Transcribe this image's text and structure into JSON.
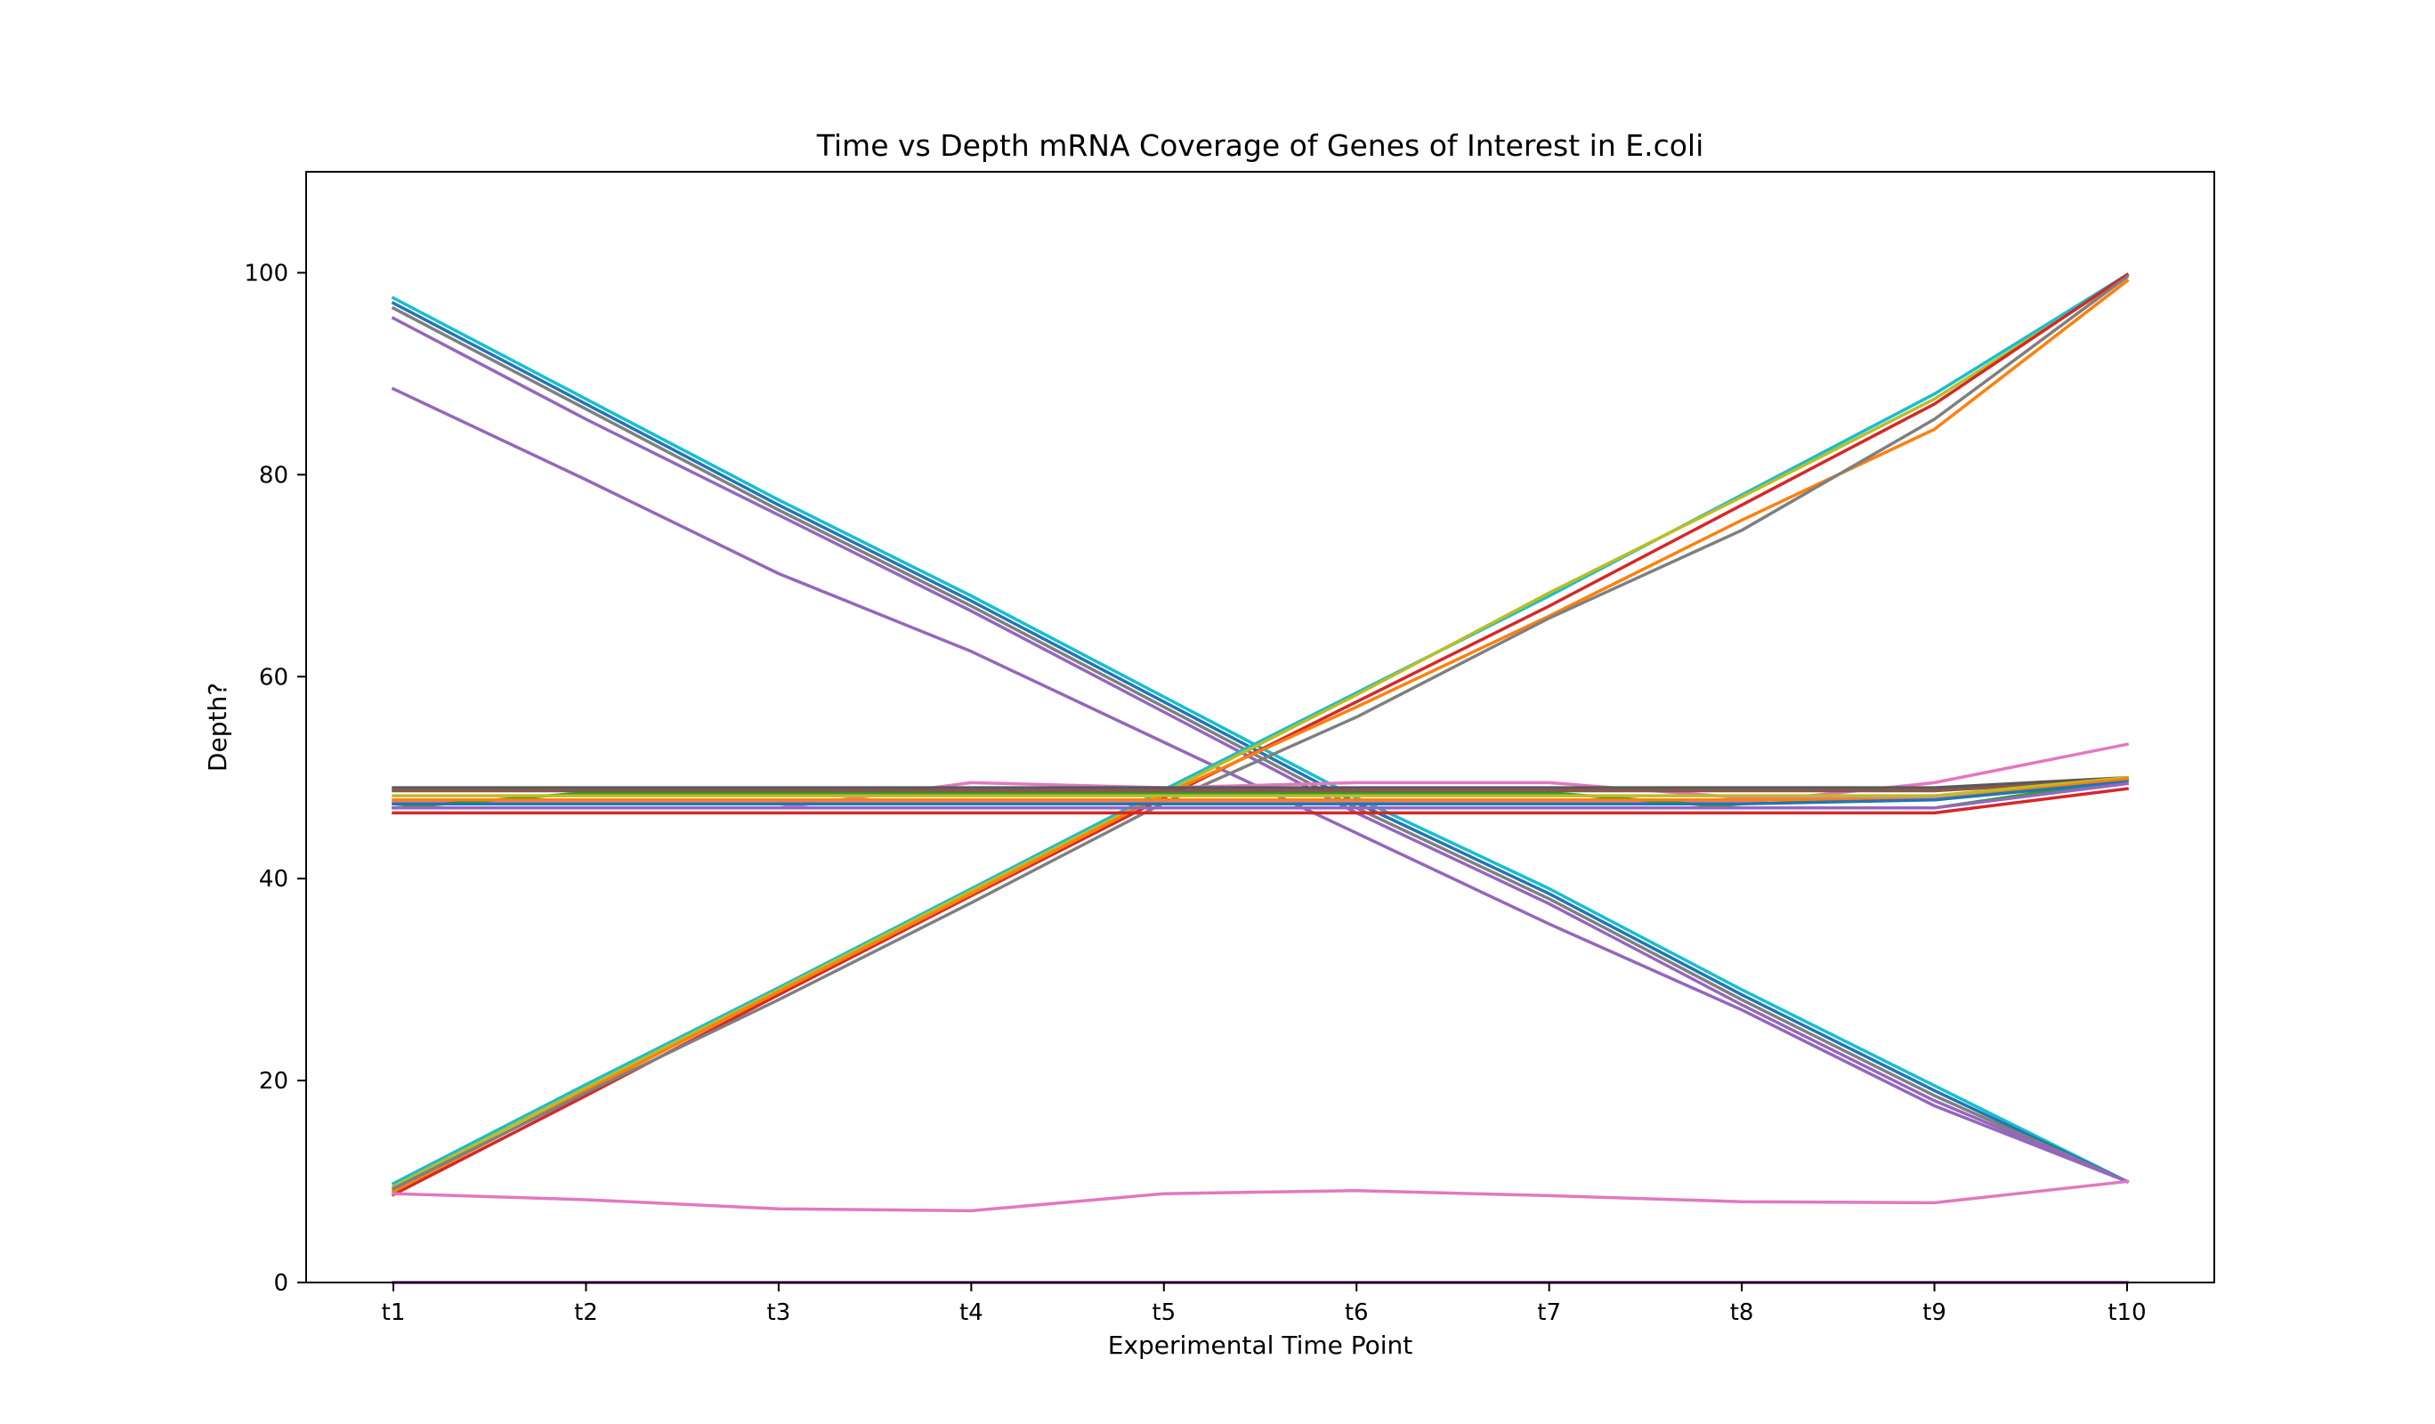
{
  "chart_data": {
    "type": "line",
    "title": "Time vs Depth mRNA Coverage of Genes of Interest in E.coli",
    "xlabel": "Experimental Time Point",
    "ylabel": "Depth?",
    "categories": [
      "t1",
      "t2",
      "t3",
      "t4",
      "t5",
      "t6",
      "t7",
      "t8",
      "t9",
      "t10"
    ],
    "ylim": [
      0,
      110
    ],
    "yticks": [
      0,
      20,
      40,
      60,
      80,
      100
    ],
    "grid": false,
    "legend": false,
    "series": [
      {
        "color": "#17becf",
        "values": [
          97.5,
          87.5,
          77.5,
          68.0,
          58.0,
          48.0,
          39.0,
          29.0,
          19.5,
          10.0
        ]
      },
      {
        "color": "#1f77b4",
        "values": [
          97.0,
          87.0,
          77.0,
          67.5,
          57.5,
          47.5,
          38.5,
          28.5,
          19.0,
          10.0
        ]
      },
      {
        "color": "#7f7f7f",
        "values": [
          96.5,
          86.5,
          76.5,
          67.0,
          57.0,
          47.0,
          38.0,
          28.0,
          18.5,
          10.0
        ]
      },
      {
        "color": "#9467bd",
        "values": [
          95.5,
          85.5,
          76.0,
          66.5,
          56.5,
          46.5,
          37.5,
          27.5,
          18.0,
          10.0
        ]
      },
      {
        "color": "#9467bd",
        "values": [
          88.5,
          79.5,
          70.2,
          62.5,
          53.5,
          44.5,
          35.5,
          27.0,
          17.5,
          10.0
        ]
      },
      {
        "color": "#17becf",
        "values": [
          9.8,
          19.6,
          29.2,
          39.0,
          48.8,
          58.4,
          68.0,
          78.0,
          88.0,
          99.8
        ]
      },
      {
        "color": "#bcbd22",
        "values": [
          9.5,
          19.3,
          29.0,
          38.8,
          48.5,
          58.2,
          68.3,
          77.8,
          87.5,
          99.6
        ]
      },
      {
        "color": "#d62728",
        "values": [
          8.7,
          18.5,
          28.5,
          38.3,
          48.0,
          57.5,
          67.0,
          77.0,
          87.0,
          99.8
        ]
      },
      {
        "color": "#ff7f0e",
        "values": [
          9.0,
          19.0,
          28.8,
          38.5,
          48.3,
          57.0,
          66.0,
          75.5,
          84.5,
          99.2
        ]
      },
      {
        "color": "#7f7f7f",
        "values": [
          9.3,
          18.8,
          28.0,
          37.6,
          47.5,
          56.0,
          65.8,
          74.5,
          85.5,
          99.6
        ]
      },
      {
        "color": "#e377c2",
        "values": [
          8.8,
          8.2,
          7.3,
          7.1,
          8.8,
          9.1,
          8.6,
          8.0,
          7.9,
          10.0
        ]
      },
      {
        "color": "#e377c2",
        "values": [
          47.5,
          47.5,
          47.5,
          47.5,
          47.5,
          47.5,
          47.5,
          47.5,
          49.5,
          53.3
        ]
      },
      {
        "color": "#e377c2",
        "values": [
          47.0,
          47.0,
          47.0,
          49.5,
          49.0,
          49.5,
          49.5,
          48.0,
          48.0,
          49.8
        ]
      },
      {
        "color": "#2ca02c",
        "values": [
          47.0,
          48.5,
          48.5,
          48.5,
          48.5,
          48.5,
          48.5,
          47.0,
          47.0,
          49.8
        ]
      },
      {
        "color": "#595959",
        "values": [
          49.0,
          49.0,
          49.0,
          49.0,
          49.0,
          49.0,
          49.0,
          49.0,
          49.0,
          50.0
        ]
      },
      {
        "color": "#8c564b",
        "values": [
          48.7,
          48.7,
          48.7,
          48.7,
          48.7,
          48.7,
          48.7,
          48.7,
          48.7,
          49.8
        ]
      },
      {
        "color": "#bcbd22",
        "values": [
          48.2,
          48.2,
          48.2,
          48.2,
          48.2,
          48.2,
          48.2,
          48.2,
          48.2,
          50.0
        ]
      },
      {
        "color": "#ff7f0e",
        "values": [
          47.8,
          47.8,
          47.8,
          47.8,
          47.8,
          47.8,
          47.8,
          47.8,
          47.8,
          49.9
        ]
      },
      {
        "color": "#1f77b4",
        "values": [
          47.4,
          47.4,
          47.4,
          47.4,
          47.4,
          47.4,
          47.4,
          47.4,
          47.8,
          49.6
        ]
      },
      {
        "color": "#9467bd",
        "values": [
          47.0,
          47.0,
          47.0,
          47.0,
          47.0,
          47.0,
          47.0,
          47.0,
          47.0,
          49.4
        ]
      },
      {
        "color": "#d62728",
        "values": [
          46.5,
          46.5,
          46.5,
          46.5,
          46.5,
          46.5,
          46.5,
          46.5,
          46.5,
          48.9
        ]
      },
      {
        "color": "#d62728",
        "values": [
          0.0,
          0.0,
          0.0,
          0.0,
          0.0,
          0.0,
          0.0,
          0.0,
          0.0,
          0.0
        ]
      },
      {
        "color": "#9467bd",
        "values": [
          0.0,
          0.0,
          0.0,
          0.0,
          0.0,
          0.0,
          0.0,
          0.0,
          0.0,
          0.0
        ]
      }
    ]
  }
}
